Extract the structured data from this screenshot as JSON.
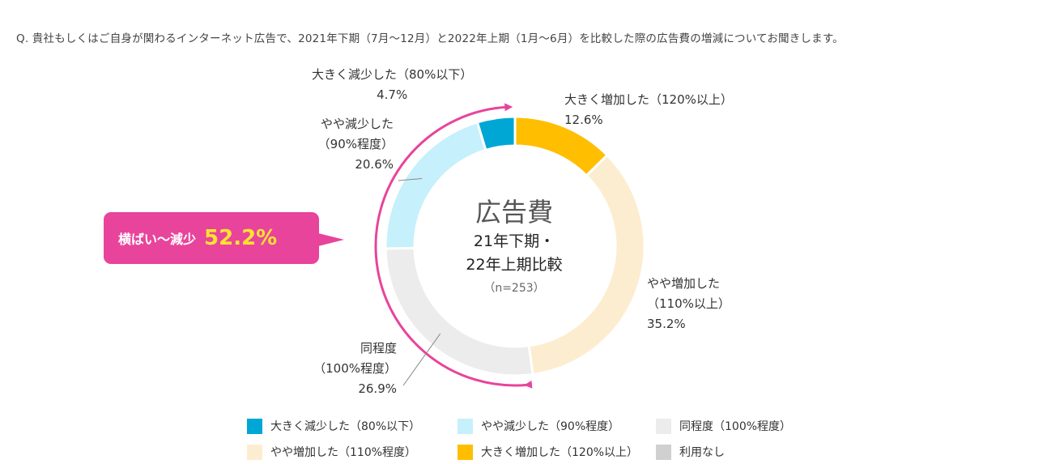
{
  "question": "Q.  貴社もしくはご自身が関わるインターネット広告で、2021年下期（7月～12月）と2022年上期（1月～6月）を比較した際の広告費の増減についてお聞きします。",
  "chart_data": {
    "type": "pie",
    "title": "広告費",
    "subtitle_lines": [
      "21年下期・",
      "22年上期比較"
    ],
    "sample_size": "（n=253）",
    "slices": [
      {
        "label_lines": [
          "大きく減少した（80%以下）"
        ],
        "value": 4.7,
        "value_text": "4.7%",
        "color": "#00a7d4"
      },
      {
        "label_lines": [
          "大きく増加した（120%以上）"
        ],
        "value": 12.6,
        "value_text": "12.6%",
        "color": "#ffbe00"
      },
      {
        "label_lines": [
          "やや増加した",
          "（110%以上）"
        ],
        "value": 35.2,
        "value_text": "35.2%",
        "color": "#fdedd0"
      },
      {
        "label_lines": [
          "同程度",
          "（100%程度）"
        ],
        "value": 26.9,
        "value_text": "26.9%",
        "color": "#ececec"
      },
      {
        "label_lines": [
          "やや減少した",
          "（90%程度）"
        ],
        "value": 20.6,
        "value_text": "20.6%",
        "color": "#c6f0fb"
      }
    ],
    "callout": {
      "text": "横ばい～減少",
      "value": "52.2%"
    },
    "legend": [
      {
        "label": "大きく減少した（80%以下）",
        "color": "#00a7d4"
      },
      {
        "label": "やや減少した（90%程度）",
        "color": "#c6f0fb"
      },
      {
        "label": "同程度（100%程度）",
        "color": "#ececec"
      },
      {
        "label": "やや増加した（110%程度）",
        "color": "#fdedd0"
      },
      {
        "label": "大きく増加した（120%以上）",
        "color": "#ffbe00"
      },
      {
        "label": "利用なし",
        "color": "#d0d0d0"
      }
    ]
  }
}
